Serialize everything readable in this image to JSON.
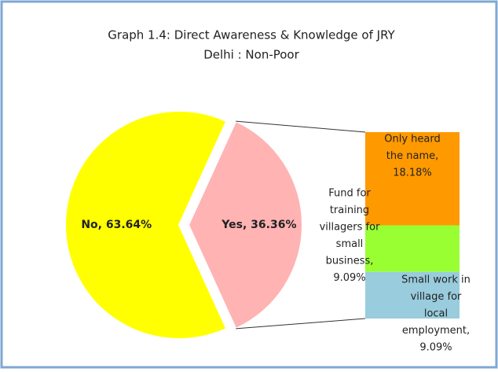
{
  "chart_data": {
    "type": "pie_of_bar",
    "title": "Graph 1.4: Direct Awareness & Knowledge of JRY",
    "subtitle": "Delhi : Non-Poor",
    "slices": [
      {
        "label": "No, 63.64%",
        "value": 63.64,
        "color": "#ffff00"
      },
      {
        "label": "Yes, 36.36%",
        "value": 36.36,
        "color": "#ffb3b3"
      }
    ],
    "breakdown": [
      {
        "label": [
          "Only heard",
          "the name,",
          "18.18%"
        ],
        "value": 18.18,
        "color": "#ff9900"
      },
      {
        "label": [
          "Fund for",
          "training",
          "villagers for",
          "small",
          "business,",
          "9.09%"
        ],
        "value": 9.09,
        "color": "#99ff33"
      },
      {
        "label": [
          "Small work in",
          "village for",
          "local",
          "employment,",
          "9.09%"
        ],
        "value": 9.09,
        "color": "#99ccdd"
      }
    ]
  }
}
